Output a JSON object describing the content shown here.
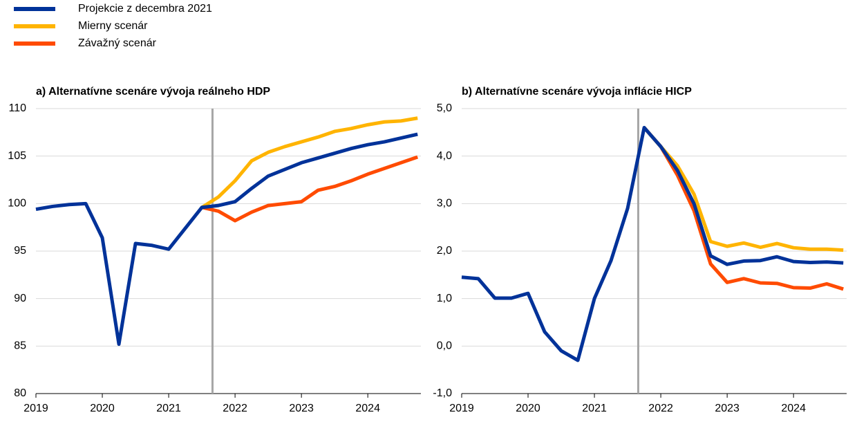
{
  "chart_data": [
    {
      "type": "line",
      "title": "a) Alternatívne scenáre vývoja reálneho HDP",
      "x": [
        2019,
        2019.25,
        2019.5,
        2019.75,
        2020,
        2020.25,
        2020.5,
        2020.75,
        2021,
        2021.25,
        2021.5,
        2021.75,
        2022,
        2022.25,
        2022.5,
        2022.75,
        2023,
        2023.25,
        2023.5,
        2023.75,
        2024,
        2024.25,
        2024.5,
        2024.75
      ],
      "xlim": [
        2019,
        2024.8
      ],
      "xticks": [
        2019,
        2020,
        2021,
        2022,
        2023,
        2024
      ],
      "ylim": [
        80,
        110
      ],
      "yticks": [
        80,
        85,
        90,
        95,
        100,
        105,
        110
      ],
      "grid": true,
      "vline": 2021.66,
      "series": [
        {
          "name": "Projekcie z decembra 2021",
          "color": "#003299",
          "values": [
            99.4,
            99.7,
            99.9,
            100.0,
            96.4,
            85.2,
            95.8,
            95.6,
            95.2,
            97.4,
            99.6,
            99.8,
            100.2,
            101.6,
            102.9,
            103.6,
            104.3,
            104.8,
            105.3,
            105.8,
            106.2,
            106.5,
            106.9,
            107.3
          ]
        },
        {
          "name": "Mierny scenár",
          "color": "#ffb400",
          "values": [
            null,
            null,
            null,
            null,
            null,
            null,
            null,
            null,
            null,
            null,
            99.6,
            100.7,
            102.4,
            104.5,
            105.4,
            106.0,
            106.5,
            107.0,
            107.6,
            107.9,
            108.3,
            108.6,
            108.7,
            109.0
          ]
        },
        {
          "name": "Závažný scenár",
          "color": "#ff4b00",
          "values": [
            null,
            null,
            null,
            null,
            null,
            null,
            null,
            null,
            null,
            null,
            99.6,
            99.2,
            98.2,
            99.1,
            99.8,
            100.0,
            100.2,
            101.4,
            101.8,
            102.4,
            103.1,
            103.7,
            104.3,
            104.9
          ]
        }
      ]
    },
    {
      "type": "line",
      "title": "b) Alternatívne scenáre vývoja inflácie HICP",
      "x": [
        2019,
        2019.25,
        2019.5,
        2019.75,
        2020,
        2020.25,
        2020.5,
        2020.75,
        2021,
        2021.25,
        2021.5,
        2021.75,
        2022,
        2022.25,
        2022.5,
        2022.75,
        2023,
        2023.25,
        2023.5,
        2023.75,
        2024,
        2024.25,
        2024.5,
        2024.75
      ],
      "xlim": [
        2019,
        2024.8
      ],
      "xticks": [
        2019,
        2020,
        2021,
        2022,
        2023,
        2024
      ],
      "ylim": [
        -1,
        5
      ],
      "yticks": [
        {
          "value": -1,
          "label": "-1,0"
        },
        {
          "value": 0,
          "label": "0,0"
        },
        {
          "value": 1,
          "label": "1,0"
        },
        {
          "value": 2,
          "label": "2,0"
        },
        {
          "value": 3,
          "label": "3,0"
        },
        {
          "value": 4,
          "label": "4,0"
        },
        {
          "value": 5,
          "label": "5,0"
        }
      ],
      "grid": true,
      "vline": 2021.66,
      "series": [
        {
          "name": "Projekcie z decembra 2021",
          "color": "#003299",
          "values": [
            1.45,
            1.42,
            1.01,
            1.01,
            1.11,
            0.3,
            -0.1,
            -0.3,
            1.0,
            1.8,
            2.9,
            4.6,
            4.2,
            3.7,
            3.0,
            1.9,
            1.72,
            1.79,
            1.8,
            1.88,
            1.78,
            1.76,
            1.77,
            1.75
          ]
        },
        {
          "name": "Mierny scenár",
          "color": "#ffb400",
          "values": [
            null,
            null,
            null,
            null,
            null,
            null,
            null,
            null,
            null,
            null,
            null,
            4.6,
            4.2,
            3.8,
            3.2,
            2.2,
            2.1,
            2.17,
            2.08,
            2.16,
            2.07,
            2.04,
            2.04,
            2.02
          ]
        },
        {
          "name": "Závažný scenár",
          "color": "#ff4b00",
          "values": [
            null,
            null,
            null,
            null,
            null,
            null,
            null,
            null,
            null,
            null,
            null,
            4.6,
            4.2,
            3.6,
            2.85,
            1.73,
            1.34,
            1.42,
            1.33,
            1.32,
            1.23,
            1.22,
            1.31,
            1.2
          ]
        }
      ]
    }
  ]
}
